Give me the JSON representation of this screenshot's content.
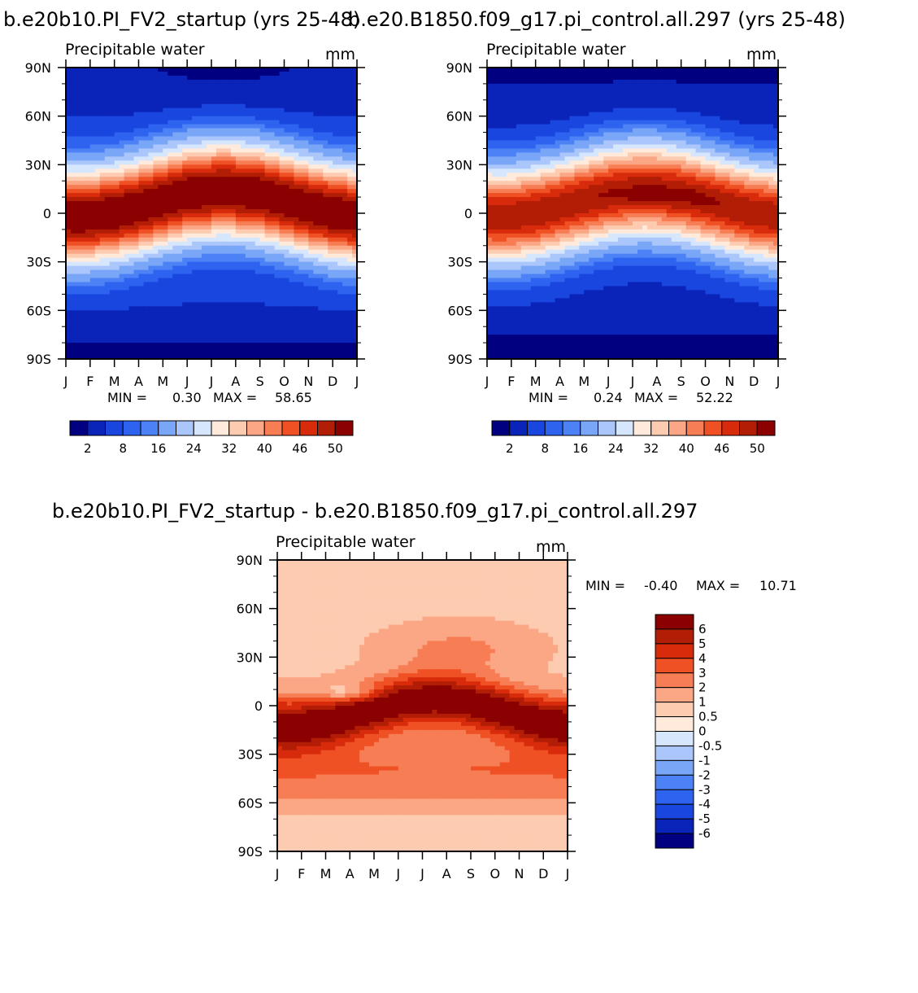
{
  "panels": [
    {
      "run_title": "b.e20b10.PI_FV2_startup (yrs 25-48)",
      "title": "Precipitable water",
      "units": "mm",
      "min_label": "MIN =",
      "min_value": "0.30",
      "max_label": "MAX =",
      "max_value": "58.65"
    },
    {
      "run_title": "b.e20.B1850.f09_g17.pi_control.all.297 (yrs 25-48)",
      "title": "Precipitable water",
      "units": "mm",
      "min_label": "MIN =",
      "min_value": "0.24",
      "max_label": "MAX =",
      "max_value": "52.22"
    },
    {
      "run_title": "b.e20b10.PI_FV2_startup - b.e20.B1850.f09_g17.pi_control.all.297",
      "title": "Precipitable water",
      "units": "mm",
      "min_label": "MIN =",
      "min_value": "-0.40",
      "max_label": "MAX =",
      "max_value": "10.71"
    }
  ],
  "chart_data": [
    {
      "type": "heatmap",
      "title": "Precipitable water",
      "units": "mm",
      "x_ticks": [
        "J",
        "F",
        "M",
        "A",
        "M",
        "J",
        "J",
        "A",
        "S",
        "O",
        "N",
        "D",
        "J"
      ],
      "y_ticks": [
        "90N",
        "60N",
        "30N",
        "0",
        "30S",
        "60S",
        "90S"
      ],
      "y_range": [
        -90,
        90
      ],
      "colorbar_labels": [
        "2",
        "8",
        "16",
        "24",
        "32",
        "40",
        "46",
        "50"
      ],
      "colors": [
        "#000080",
        "#0a23b8",
        "#1a46e0",
        "#2e63f0",
        "#4c82f5",
        "#7aa6f7",
        "#aac6fa",
        "#d6e6fc",
        "#ffeadb",
        "#fccbb0",
        "#fba684",
        "#f77d55",
        "#ef5024",
        "#d82b0c",
        "#b21d06",
        "#8b0000"
      ],
      "min": 0.3,
      "max": 58.65,
      "field": "clim_a"
    },
    {
      "type": "heatmap",
      "title": "Precipitable water",
      "units": "mm",
      "x_ticks": [
        "J",
        "F",
        "M",
        "A",
        "M",
        "J",
        "J",
        "A",
        "S",
        "O",
        "N",
        "D",
        "J"
      ],
      "y_ticks": [
        "90N",
        "60N",
        "30N",
        "0",
        "30S",
        "60S",
        "90S"
      ],
      "y_range": [
        -90,
        90
      ],
      "colorbar_labels": [
        "2",
        "8",
        "16",
        "24",
        "32",
        "40",
        "46",
        "50"
      ],
      "colors": [
        "#000080",
        "#0a23b8",
        "#1a46e0",
        "#2e63f0",
        "#4c82f5",
        "#7aa6f7",
        "#aac6fa",
        "#d6e6fc",
        "#ffeadb",
        "#fccbb0",
        "#fba684",
        "#f77d55",
        "#ef5024",
        "#d82b0c",
        "#b21d06",
        "#8b0000"
      ],
      "min": 0.24,
      "max": 52.22,
      "field": "clim_b"
    },
    {
      "type": "heatmap",
      "title": "Precipitable water",
      "units": "mm",
      "x_ticks": [
        "J",
        "F",
        "M",
        "A",
        "M",
        "J",
        "J",
        "A",
        "S",
        "O",
        "N",
        "D",
        "J"
      ],
      "y_ticks": [
        "90N",
        "60N",
        "30N",
        "0",
        "30S",
        "60S",
        "90S"
      ],
      "y_range": [
        -90,
        90
      ],
      "colorbar_labels": [
        "6",
        "5",
        "4",
        "3",
        "2",
        "1",
        "0.5",
        "0",
        "-0.5",
        "-1",
        "-2",
        "-3",
        "-4",
        "-5",
        "-6"
      ],
      "colors": [
        "#8b0000",
        "#b21d06",
        "#d82b0c",
        "#ef5024",
        "#f77d55",
        "#fba684",
        "#fccbb0",
        "#ffeadb",
        "#d6e6fc",
        "#aac6fa",
        "#7aa6f7",
        "#4c82f5",
        "#2e63f0",
        "#1a46e0",
        "#0a23b8",
        "#000080"
      ],
      "min": -0.4,
      "max": 10.71,
      "field": "diff"
    }
  ]
}
